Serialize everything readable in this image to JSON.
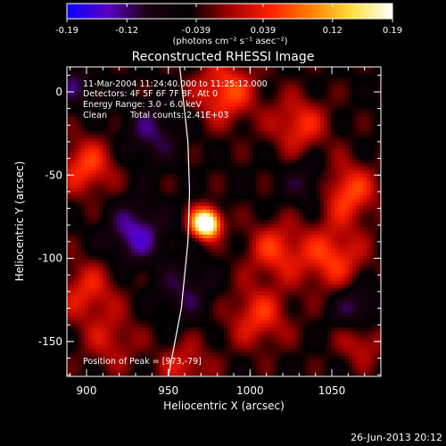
{
  "chart_data": {
    "type": "heatmap",
    "title": "Reconstructed RHESSI Image",
    "xlabel": "Heliocentric X (arcsec)",
    "ylabel": "Heliocentric Y (arcsec)",
    "xlim": [
      888,
      1080
    ],
    "ylim": [
      -171,
      15
    ],
    "x_ticks": [
      900,
      950,
      1000,
      1050
    ],
    "y_ticks": [
      0,
      -50,
      -100,
      -150
    ],
    "x_tick_labels": [
      "900",
      "950",
      "1000",
      "1050"
    ],
    "y_tick_labels": [
      "0",
      "-50",
      "-100",
      "-150"
    ],
    "colorbar": {
      "range": [
        -0.19,
        0.19
      ],
      "ticks": [
        -0.19,
        -0.12,
        -0.039,
        0.039,
        0.12,
        0.19
      ],
      "tick_labels": [
        "-0.19",
        "-0.12",
        "-0.039",
        "0.039",
        "0.12",
        "0.19"
      ],
      "unit_label": "(photons cm⁻² s⁻¹ asec⁻²)",
      "colors": [
        "#0a00ff",
        "#5a00c0",
        "#1a0010",
        "#000000",
        "#a00000",
        "#ff2000",
        "#ff8000",
        "#ffe040",
        "#ffffff"
      ]
    },
    "peak": {
      "x": 973,
      "y": -79,
      "value": 0.19
    },
    "limb": [
      [
        957,
        15
      ],
      [
        962,
        -30
      ],
      [
        963,
        -60
      ],
      [
        962,
        -90
      ],
      [
        958,
        -130
      ],
      [
        950,
        -171
      ]
    ],
    "emission_components": [
      {
        "x": 973,
        "y": -79,
        "amplitude": 0.32,
        "sigma": 6
      },
      {
        "x": 900,
        "y": -45,
        "amplitude": 0.1,
        "sigma": 12
      },
      {
        "x": 900,
        "y": -120,
        "amplitude": 0.08,
        "sigma": 13
      },
      {
        "x": 915,
        "y": -150,
        "amplitude": 0.06,
        "sigma": 12
      },
      {
        "x": 985,
        "y": 0,
        "amplitude": 0.11,
        "sigma": 13
      },
      {
        "x": 1030,
        "y": -20,
        "amplitude": 0.09,
        "sigma": 12
      },
      {
        "x": 1060,
        "y": -60,
        "amplitude": 0.11,
        "sigma": 12
      },
      {
        "x": 1050,
        "y": -100,
        "amplitude": 0.1,
        "sigma": 14
      },
      {
        "x": 1015,
        "y": -95,
        "amplitude": 0.09,
        "sigma": 12
      },
      {
        "x": 1005,
        "y": -135,
        "amplitude": 0.09,
        "sigma": 13
      },
      {
        "x": 960,
        "y": -165,
        "amplitude": 0.07,
        "sigma": 11
      },
      {
        "x": 1068,
        "y": -150,
        "amplitude": 0.07,
        "sigma": 10
      },
      {
        "x": 930,
        "y": -85,
        "amplitude": -0.1,
        "sigma": 12
      },
      {
        "x": 940,
        "y": -25,
        "amplitude": -0.07,
        "sigma": 12
      },
      {
        "x": 1035,
        "y": -55,
        "amplitude": -0.06,
        "sigma": 10
      },
      {
        "x": 1065,
        "y": -130,
        "amplitude": -0.08,
        "sigma": 10
      },
      {
        "x": 960,
        "y": -120,
        "amplitude": -0.06,
        "sigma": 12
      },
      {
        "x": 892,
        "y": 5,
        "amplitude": -0.06,
        "sigma": 10
      }
    ],
    "grid": false,
    "legend": "none"
  },
  "annotations": {
    "time_range": "11-Mar-2004 11:24:40.000 to 11:25:12.000",
    "detectors": "Detectors: 4F 5F 6F 7F 8F, Att 0",
    "energy_range": "Energy Range: 3.0 - 6.0 keV",
    "algorithm": "Clean",
    "total_counts": "Total counts: 2.41E+03",
    "peak_position": "Position of Peak = [973,-79]"
  },
  "footer": {
    "date": "26-Jun-2013 20:12"
  }
}
